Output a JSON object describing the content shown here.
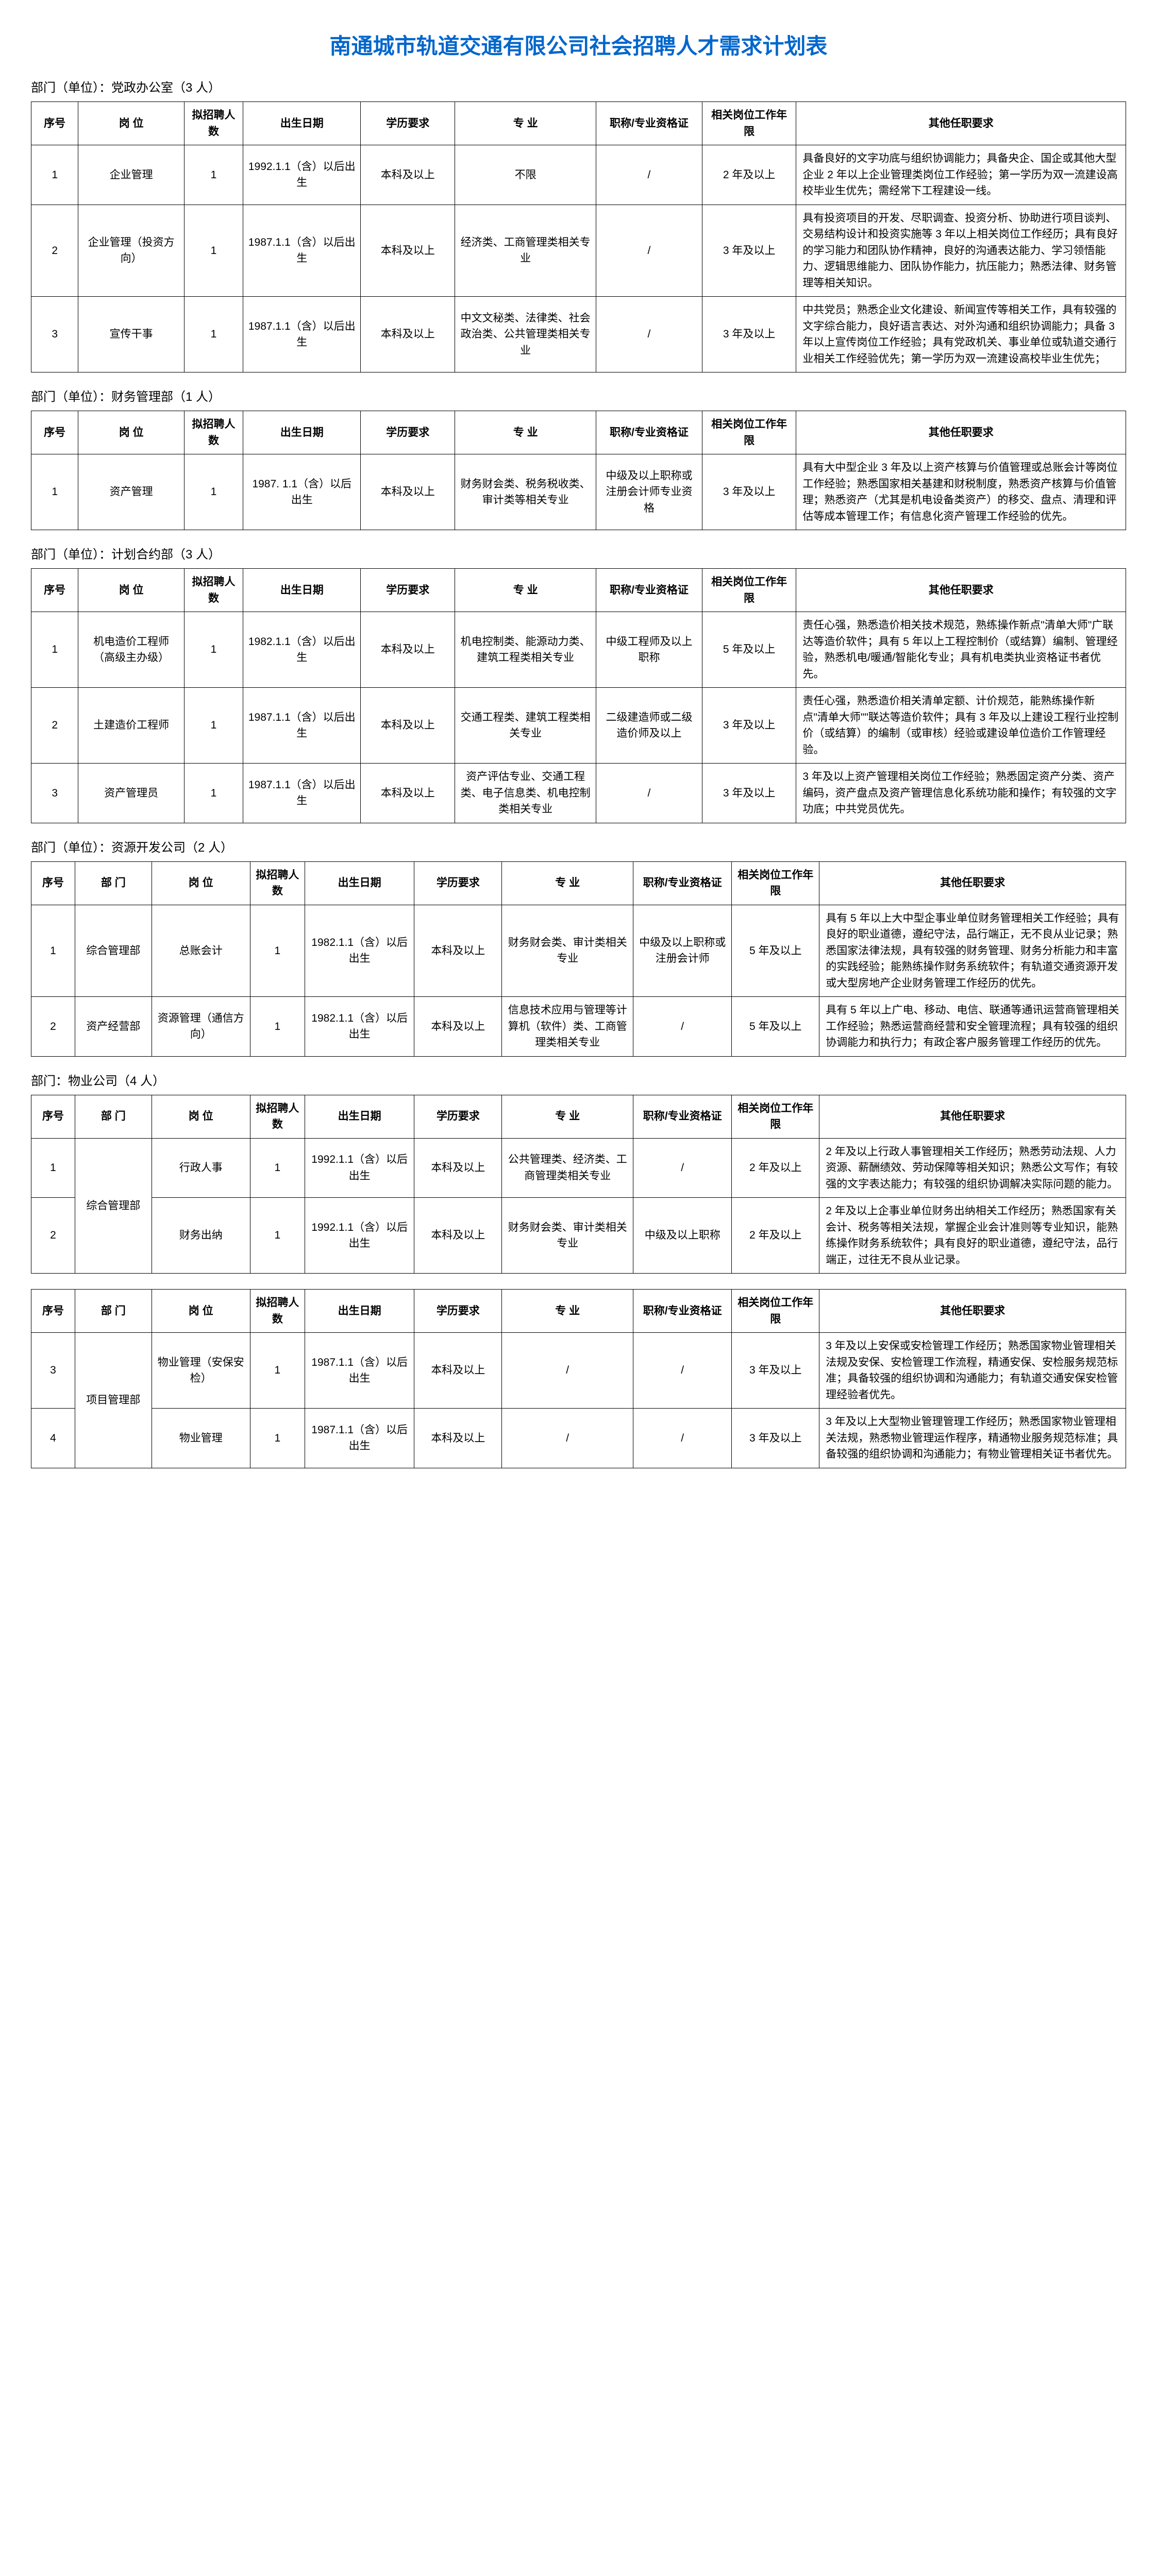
{
  "title": "南通城市轨道交通有限公司社会招聘人才需求计划表",
  "headers": {
    "seq": "序号",
    "seq2": "序 号",
    "dept": "部门",
    "dept2": "部 门",
    "pos": "岗位",
    "pos2": "岗 位",
    "num": "拟招聘人数",
    "dob": "出生日期",
    "edu": "学历要求",
    "major": "专业",
    "major2": "专 业",
    "cert": "职称/专业资格证",
    "exp": "相关岗位工作年限",
    "req": "其他任职要求"
  },
  "sections": [
    {
      "dept_line": "部门（单位）：党政办公室（3 人）",
      "has_dept_col": false,
      "rows": [
        {
          "seq": "1",
          "pos": "企业管理",
          "num": "1",
          "dob": "1992.1.1（含）以后出生",
          "edu": "本科及以上",
          "major": "不限",
          "cert": "/",
          "exp": "2 年及以上",
          "req": "具备良好的文字功底与组织协调能力；具备央企、国企或其他大型企业 2 年以上企业管理类岗位工作经验；第一学历为双一流建设高校毕业生优先；需经常下工程建设一线。"
        },
        {
          "seq": "2",
          "pos": "企业管理（投资方向）",
          "num": "1",
          "dob": "1987.1.1（含）以后出生",
          "edu": "本科及以上",
          "major": "经济类、工商管理类相关专业",
          "cert": "/",
          "exp": "3 年及以上",
          "req": "具有投资项目的开发、尽职调查、投资分析、协助进行项目谈判、交易结构设计和投资实施等 3 年以上相关岗位工作经历；具有良好的学习能力和团队协作精神，良好的沟通表达能力、学习领悟能力、逻辑思维能力、团队协作能力，抗压能力；熟悉法律、财务管理等相关知识。"
        },
        {
          "seq": "3",
          "pos": "宣传干事",
          "num": "1",
          "dob": "1987.1.1（含）以后出生",
          "edu": "本科及以上",
          "major": "中文文秘类、法律类、社会政治类、公共管理类相关专业",
          "cert": "/",
          "exp": "3 年及以上",
          "req": "中共党员；熟悉企业文化建设、新闻宣传等相关工作，具有较强的文字综合能力，良好语言表达、对外沟通和组织协调能力；具备 3 年以上宣传岗位工作经验；具有党政机关、事业单位或轨道交通行业相关工作经验优先；第一学历为双一流建设高校毕业生优先；"
        }
      ]
    },
    {
      "dept_line": "部门（单位）：财务管理部（1 人）",
      "has_dept_col": false,
      "rows": [
        {
          "seq": "1",
          "pos": "资产管理",
          "num": "1",
          "dob": "1987. 1.1（含）以后出生",
          "edu": "本科及以上",
          "major": "财务财会类、税务税收类、审计类等相关专业",
          "cert": "中级及以上职称或注册会计师专业资格",
          "exp": "3 年及以上",
          "req": "具有大中型企业 3 年及以上资产核算与价值管理或总账会计等岗位工作经验；熟悉国家相关基建和财税制度，熟悉资产核算与价值管理；熟悉资产（尤其是机电设备类资产）的移交、盘点、清理和评估等成本管理工作；有信息化资产管理工作经验的优先。"
        }
      ]
    },
    {
      "dept_line": "部门（单位）：计划合约部（3 人）",
      "has_dept_col": false,
      "rows": [
        {
          "seq": "1",
          "pos": "机电造价工程师（高级主办级）",
          "num": "1",
          "dob": "1982.1.1（含）以后出生",
          "edu": "本科及以上",
          "major": "机电控制类、能源动力类、建筑工程类相关专业",
          "cert": "中级工程师及以上职称",
          "exp": "5 年及以上",
          "req": "责任心强，熟悉造价相关技术规范，熟练操作新点\"清单大师\"广联达等造价软件；具有 5 年以上工程控制价（或结算）编制、管理经验，熟悉机电/暖通/智能化专业；具有机电类执业资格证书者优先。"
        },
        {
          "seq": "2",
          "pos": "土建造价工程师",
          "num": "1",
          "dob": "1987.1.1（含）以后出生",
          "edu": "本科及以上",
          "major": "交通工程类、建筑工程类相关专业",
          "cert": "二级建造师或二级造价师及以上",
          "exp": "3 年及以上",
          "req": "责任心强，熟悉造价相关清单定额、计价规范，能熟练操作新点\"清单大师\"\"联达等造价软件；具有 3 年及以上建设工程行业控制价（或结算）的编制（或审核）经验或建设单位造价工作管理经验。"
        },
        {
          "seq": "3",
          "pos": "资产管理员",
          "num": "1",
          "dob": "1987.1.1（含）以后出生",
          "edu": "本科及以上",
          "major": "资产评估专业、交通工程类、电子信息类、机电控制类相关专业",
          "cert": "/",
          "exp": "3 年及以上",
          "req": "3 年及以上资产管理相关岗位工作经验；熟悉固定资产分类、资产编码，资产盘点及资产管理信息化系统功能和操作；有较强的文字功底；中共党员优先。"
        }
      ]
    },
    {
      "dept_line": "部门（单位）：资源开发公司（2 人）",
      "has_dept_col": true,
      "rows": [
        {
          "seq": "1",
          "dept": "综合管理部",
          "pos": "总账会计",
          "num": "1",
          "dob": "1982.1.1（含）以后出生",
          "edu": "本科及以上",
          "major": "财务财会类、审计类相关专业",
          "cert": "中级及以上职称或注册会计师",
          "exp": "5 年及以上",
          "req": "具有 5 年以上大中型企事业单位财务管理相关工作经验；具有良好的职业道德，遵纪守法，品行端正，无不良从业记录；熟悉国家法律法规，具有较强的财务管理、财务分析能力和丰富的实践经验；能熟练操作财务系统软件；有轨道交通资源开发或大型房地产企业财务管理工作经历的优先。"
        },
        {
          "seq": "2",
          "dept": "资产经营部",
          "pos": "资源管理（通信方向）",
          "num": "1",
          "dob": "1982.1.1（含）以后出生",
          "edu": "本科及以上",
          "major": "信息技术应用与管理等计算机（软件）类、工商管理类相关专业",
          "cert": "/",
          "exp": "5 年及以上",
          "req": "具有 5 年以上广电、移动、电信、联通等通讯运营商管理相关工作经验；熟悉运营商经营和安全管理流程；具有较强的组织协调能力和执行力；有政企客户服务管理工作经历的优先。"
        }
      ]
    },
    {
      "dept_line": "部门：物业公司（4 人）",
      "has_dept_col": true,
      "split_after": 2,
      "rows": [
        {
          "seq": "1",
          "dept": "综合管理部",
          "dept_rowspan": 2,
          "pos": "行政人事",
          "num": "1",
          "dob": "1992.1.1（含）以后出生",
          "edu": "本科及以上",
          "major": "公共管理类、经济类、工商管理类相关专业",
          "cert": "/",
          "exp": "2 年及以上",
          "req": "2 年及以上行政人事管理相关工作经历；熟悉劳动法规、人力资源、薪酬绩效、劳动保障等相关知识；熟悉公文写作；有较强的文字表达能力；有较强的组织协调解决实际问题的能力。"
        },
        {
          "seq": "2",
          "dept": "",
          "pos": "财务出纳",
          "num": "1",
          "dob": "1992.1.1（含）以后出生",
          "edu": "本科及以上",
          "major": "财务财会类、审计类相关专业",
          "cert": "中级及以上职称",
          "exp": "2 年及以上",
          "req": "2 年及以上企事业单位财务出纳相关工作经历；熟悉国家有关会计、税务等相关法规，掌握企业会计准则等专业知识，能熟练操作财务系统软件；具有良好的职业道德，遵纪守法，品行端正，过往无不良从业记录。"
        },
        {
          "seq": "3",
          "dept": "项目管理部",
          "dept_rowspan": 2,
          "pos": "物业管理（安保安检）",
          "num": "1",
          "dob": "1987.1.1（含）以后出生",
          "edu": "本科及以上",
          "major": "/",
          "cert": "/",
          "exp": "3 年及以上",
          "req": "3 年及以上安保或安检管理工作经历；熟悉国家物业管理相关法规及安保、安检管理工作流程，精通安保、安检服务规范标准；具备较强的组织协调和沟通能力；有轨道交通安保安检管理经验者优先。"
        },
        {
          "seq": "4",
          "dept": "",
          "pos": "物业管理",
          "num": "1",
          "dob": "1987.1.1（含）以后出生",
          "edu": "本科及以上",
          "major": "/",
          "cert": "/",
          "exp": "3 年及以上",
          "req": "3 年及以上大型物业管理管理工作经历；熟悉国家物业管理相关法规，熟悉物业管理运作程序，精通物业服务规范标准；具备较强的组织协调和沟通能力；有物业管理相关证书者优先。"
        }
      ]
    }
  ]
}
